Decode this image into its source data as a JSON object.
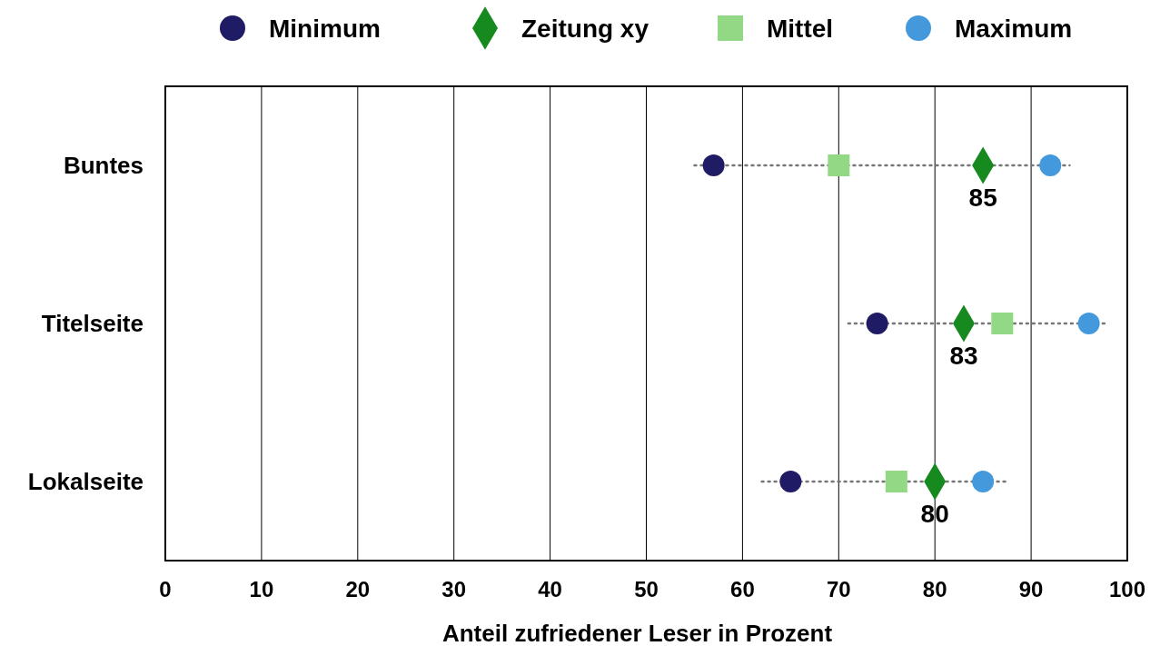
{
  "chart_data": {
    "type": "scatter",
    "orientation": "horizontal",
    "xlabel": "Anteil zufriedener Leser in Prozent",
    "categories": [
      "Buntes",
      "Titelseite",
      "Lokalseite"
    ],
    "xlim": [
      0,
      100
    ],
    "xticks": [
      0,
      10,
      20,
      30,
      40,
      50,
      60,
      70,
      80,
      90,
      100
    ],
    "grid": "x",
    "legend": "top",
    "series": [
      {
        "name": "Minimum",
        "color": "#1f1b64",
        "marker": "circle",
        "values": [
          57,
          74,
          65
        ]
      },
      {
        "name": "Zeitung xy",
        "color": "#178a1f",
        "marker": "diamond",
        "values": [
          85,
          83,
          80
        ],
        "value_labels": [
          "85",
          "83",
          "80"
        ]
      },
      {
        "name": "Mittel",
        "color": "#93d985",
        "marker": "square",
        "values": [
          70,
          87,
          76
        ],
        "errors": [
          [
            55,
            94
          ],
          [
            71,
            98
          ],
          [
            62,
            87.5
          ]
        ],
        "line_style": "dotted"
      },
      {
        "name": "Maximum",
        "color": "#4499dd",
        "marker": "circle",
        "values": [
          92,
          96,
          85
        ]
      }
    ]
  }
}
